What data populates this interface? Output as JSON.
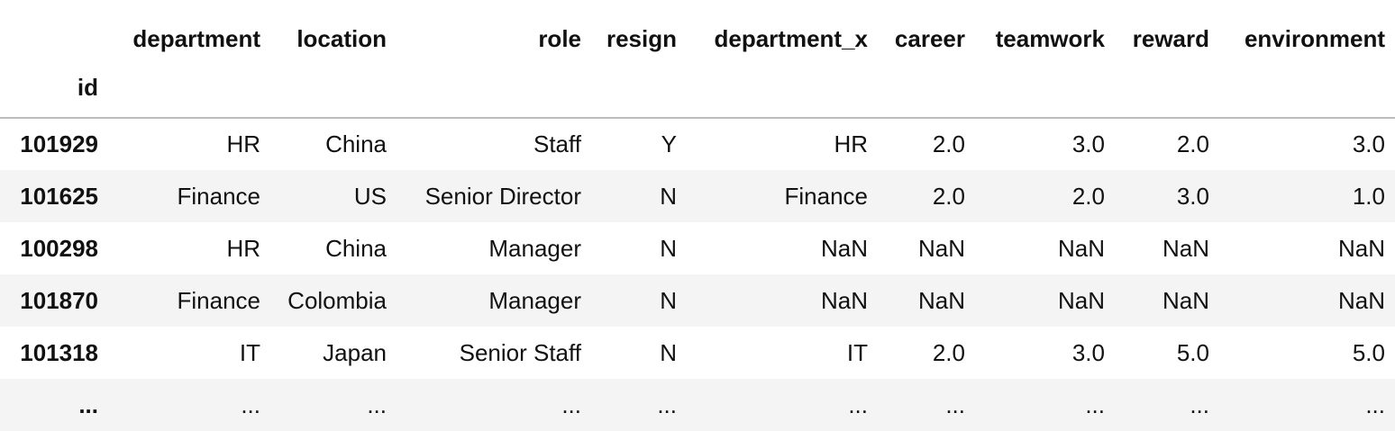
{
  "table": {
    "columns": [
      "department",
      "location",
      "role",
      "resign",
      "department_x",
      "career",
      "teamwork",
      "reward",
      "environment"
    ],
    "index_name": "id",
    "rows": [
      {
        "id": "101929",
        "cells": [
          "HR",
          "China",
          "Staff",
          "Y",
          "HR",
          "2.0",
          "3.0",
          "2.0",
          "3.0"
        ]
      },
      {
        "id": "101625",
        "cells": [
          "Finance",
          "US",
          "Senior Director",
          "N",
          "Finance",
          "2.0",
          "2.0",
          "3.0",
          "1.0"
        ]
      },
      {
        "id": "100298",
        "cells": [
          "HR",
          "China",
          "Manager",
          "N",
          "NaN",
          "NaN",
          "NaN",
          "NaN",
          "NaN"
        ]
      },
      {
        "id": "101870",
        "cells": [
          "Finance",
          "Colombia",
          "Manager",
          "N",
          "NaN",
          "NaN",
          "NaN",
          "NaN",
          "NaN"
        ]
      },
      {
        "id": "101318",
        "cells": [
          "IT",
          "Japan",
          "Senior Staff",
          "N",
          "IT",
          "2.0",
          "3.0",
          "5.0",
          "5.0"
        ]
      },
      {
        "id": "...",
        "cells": [
          "...",
          "...",
          "...",
          "...",
          "...",
          "...",
          "...",
          "...",
          "..."
        ]
      }
    ]
  }
}
